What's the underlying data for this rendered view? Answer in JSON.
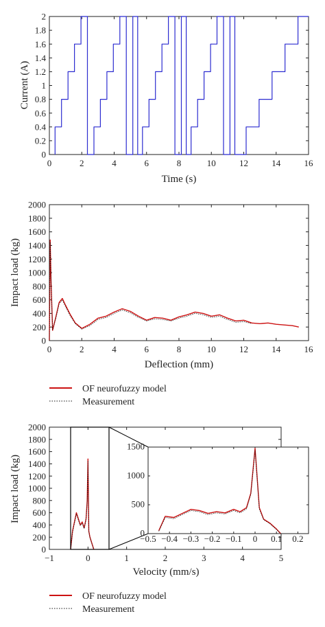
{
  "colors": {
    "current": "#2b2bd0",
    "model": "#cc1111",
    "measurement": "#111111",
    "axis": "#222222"
  },
  "legends": [
    {
      "model_label": "OF neurofuzzy model",
      "measurement_label": "Measurement"
    },
    {
      "model_label": "OF neurofuzzy model",
      "measurement_label": "Measurement"
    }
  ],
  "chart_data": [
    {
      "type": "line",
      "xlabel": "Time (s)",
      "ylabel": "Current (A)",
      "xlim": [
        0,
        16
      ],
      "ylim": [
        0,
        2
      ],
      "xticks": [
        "0",
        "2",
        "4",
        "6",
        "8",
        "10",
        "12",
        "14",
        "16"
      ],
      "yticks": [
        "0",
        "0.2",
        "0.4",
        "0.6",
        "0.8",
        "1",
        "1.2",
        "1.4",
        "1.6",
        "1.8",
        "2"
      ],
      "series": [
        {
          "x": [
            0.35,
            0.35,
            0.75,
            0.75,
            1.15,
            1.15,
            1.55,
            1.55,
            1.95,
            1.95,
            2.35,
            2.35,
            2.75,
            2.75,
            3.15,
            3.15,
            3.55,
            3.55,
            3.95,
            3.95,
            4.35,
            4.35,
            4.75,
            4.75,
            5.15,
            5.15,
            5.45,
            5.45,
            5.75,
            5.75,
            6.15,
            6.15,
            6.55,
            6.55,
            6.95,
            6.95,
            7.35,
            7.35,
            7.75,
            7.75,
            8.15,
            8.15,
            8.45,
            8.45,
            8.75,
            8.75,
            9.15,
            9.15,
            9.55,
            9.55,
            9.95,
            9.95,
            10.35,
            10.35,
            10.75,
            10.75,
            11.15,
            11.15,
            11.45,
            11.45,
            12.15,
            12.15,
            12.95,
            12.95,
            13.75,
            13.75,
            14.55,
            14.55,
            15.35,
            15.35,
            16.1
          ],
          "y": [
            0,
            0.4,
            0.4,
            0.8,
            0.8,
            1.2,
            1.2,
            1.6,
            1.6,
            2,
            2,
            0,
            0,
            0.4,
            0.4,
            0.8,
            0.8,
            1.2,
            1.2,
            1.6,
            1.6,
            2,
            2,
            0,
            0,
            2,
            2,
            0,
            0,
            0.4,
            0.4,
            0.8,
            0.8,
            1.2,
            1.2,
            1.6,
            1.6,
            2,
            2,
            0,
            0,
            2,
            2,
            0,
            0,
            0.4,
            0.4,
            0.8,
            0.8,
            1.2,
            1.2,
            1.6,
            1.6,
            2,
            2,
            0,
            0,
            2,
            2,
            0,
            0,
            0.4,
            0.4,
            0.8,
            0.8,
            1.2,
            1.2,
            1.6,
            1.6,
            2,
            2
          ]
        }
      ]
    },
    {
      "type": "line",
      "xlabel": "Deflection (mm)",
      "ylabel": "Impact load (kg)",
      "xlim": [
        0,
        16
      ],
      "ylim": [
        0,
        2000
      ],
      "xticks": [
        "0",
        "2",
        "4",
        "6",
        "8",
        "10",
        "12",
        "14",
        "16"
      ],
      "yticks": [
        "0",
        "200",
        "400",
        "600",
        "800",
        "1000",
        "1200",
        "1400",
        "1600",
        "1800",
        "2000"
      ],
      "series": [
        {
          "name": "OF neurofuzzy model",
          "x": [
            0,
            0.05,
            0.1,
            0.2,
            0.4,
            0.6,
            0.8,
            1.0,
            1.3,
            1.6,
            2.0,
            2.5,
            3.0,
            3.5,
            4.0,
            4.5,
            5.0,
            5.5,
            6.0,
            6.5,
            7.0,
            7.5,
            8.0,
            8.5,
            9.0,
            9.5,
            10.0,
            10.5,
            11.0,
            11.5,
            12.0,
            12.5,
            13.0,
            13.5,
            14.0,
            14.5,
            15.0,
            15.4
          ],
          "y": [
            0,
            1480,
            900,
            150,
            350,
            560,
            620,
            520,
            380,
            260,
            180,
            240,
            330,
            360,
            420,
            470,
            430,
            360,
            300,
            340,
            330,
            300,
            350,
            380,
            420,
            400,
            360,
            380,
            330,
            290,
            300,
            260,
            250,
            260,
            240,
            230,
            220,
            200
          ]
        },
        {
          "name": "Measurement",
          "x": [
            0,
            0.05,
            0.1,
            0.2,
            0.4,
            0.6,
            0.8,
            1.0,
            1.3,
            1.6,
            2.0,
            2.5,
            3.0,
            3.5,
            4.0,
            4.5,
            5.0,
            5.5,
            6.0,
            6.5,
            7.0,
            7.5,
            8.0,
            8.5,
            9.0,
            9.5,
            10.0,
            10.5,
            11.0,
            11.5,
            12.0,
            12.5
          ],
          "y": [
            0,
            1450,
            880,
            160,
            330,
            540,
            600,
            500,
            360,
            250,
            170,
            220,
            310,
            340,
            400,
            450,
            410,
            340,
            290,
            320,
            310,
            290,
            330,
            360,
            400,
            380,
            340,
            360,
            310,
            270,
            280,
            250
          ]
        }
      ]
    },
    {
      "type": "line",
      "xlabel": "Velocity (mm/s)",
      "ylabel": "Impact load (kg)",
      "xlim": [
        -1,
        5
      ],
      "ylim": [
        0,
        2000
      ],
      "xticks": [
        "−1",
        "0",
        "1",
        "2",
        "3",
        "4",
        "5"
      ],
      "yticks": [
        "0",
        "200",
        "400",
        "600",
        "800",
        "1000",
        "1200",
        "1400",
        "1600",
        "1800",
        "2000"
      ],
      "series": [
        {
          "name": "OF neurofuzzy model",
          "x": [
            -0.45,
            -0.4,
            -0.35,
            -0.3,
            -0.25,
            -0.2,
            -0.15,
            -0.1,
            -0.05,
            -0.02,
            0,
            0.02,
            0.05,
            0.1,
            0.15
          ],
          "y": [
            0,
            300,
            450,
            600,
            500,
            400,
            450,
            350,
            500,
            800,
            1480,
            300,
            200,
            100,
            0
          ]
        },
        {
          "name": "Measurement",
          "x": [
            -0.45,
            -0.4,
            -0.35,
            -0.3,
            -0.25,
            -0.2,
            -0.15,
            -0.1,
            -0.05,
            -0.02,
            0,
            0.02,
            0.05,
            0.1,
            0.15
          ],
          "y": [
            0,
            280,
            430,
            580,
            480,
            390,
            430,
            340,
            480,
            780,
            1450,
            290,
            190,
            90,
            0
          ]
        }
      ],
      "inset": {
        "xlim": [
          -0.5,
          0.25
        ],
        "ylim": [
          0,
          1500
        ],
        "xticks": [
          "−0.5",
          "−0.4",
          "−0.3",
          "−0.2",
          "−0.1",
          "0",
          "0.1",
          "0.2"
        ],
        "yticks": [
          "0",
          "500",
          "1000",
          "1500"
        ],
        "series": [
          {
            "name": "OF neurofuzzy model",
            "x": [
              -0.45,
              -0.42,
              -0.38,
              -0.34,
              -0.3,
              -0.26,
              -0.22,
              -0.18,
              -0.14,
              -0.1,
              -0.07,
              -0.04,
              -0.02,
              0,
              0.02,
              0.04,
              0.07,
              0.1,
              0.12
            ],
            "y": [
              50,
              300,
              280,
              350,
              420,
              400,
              350,
              380,
              360,
              420,
              380,
              450,
              700,
              1480,
              450,
              250,
              180,
              80,
              0
            ]
          },
          {
            "name": "Measurement",
            "x": [
              -0.45,
              -0.42,
              -0.38,
              -0.34,
              -0.3,
              -0.26,
              -0.22,
              -0.18,
              -0.14,
              -0.1,
              -0.07,
              -0.04,
              -0.02,
              0,
              0.02,
              0.04,
              0.07,
              0.1,
              0.12
            ],
            "y": [
              40,
              280,
              260,
              330,
              400,
              380,
              330,
              360,
              340,
              400,
              360,
              430,
              680,
              1450,
              430,
              240,
              170,
              70,
              0
            ]
          }
        ]
      }
    }
  ]
}
